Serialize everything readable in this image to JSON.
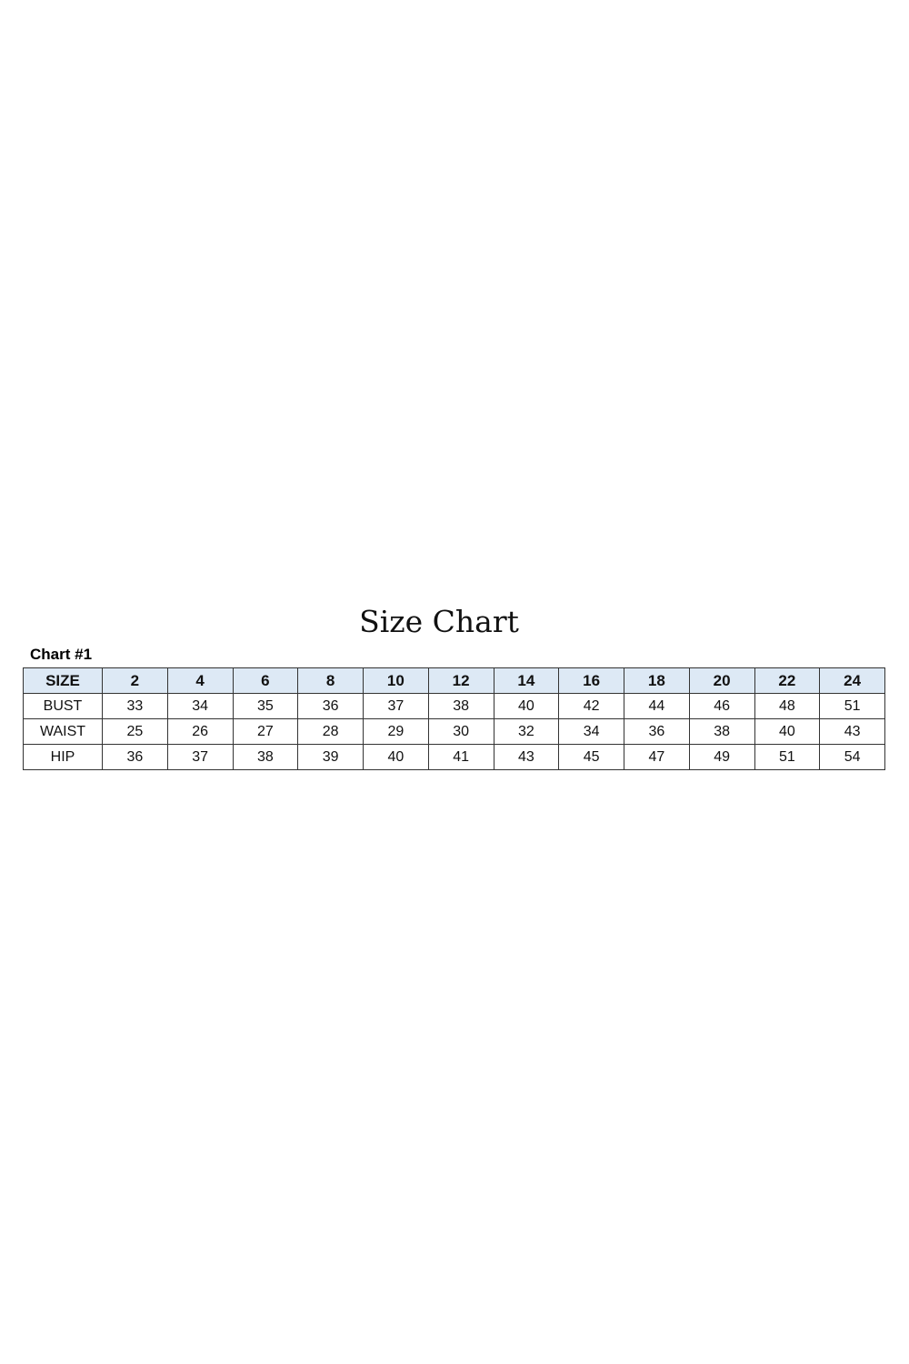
{
  "title": "Size Chart",
  "subtitle": "Chart #1",
  "colors": {
    "header_bg": "#dde9f5",
    "border": "#333333"
  },
  "table": {
    "header": [
      "SIZE",
      "2",
      "4",
      "6",
      "8",
      "10",
      "12",
      "14",
      "16",
      "18",
      "20",
      "22",
      "24"
    ],
    "rows": [
      [
        "BUST",
        "33",
        "34",
        "35",
        "36",
        "37",
        "38",
        "40",
        "42",
        "44",
        "46",
        "48",
        "51"
      ],
      [
        "WAIST",
        "25",
        "26",
        "27",
        "28",
        "29",
        "30",
        "32",
        "34",
        "36",
        "38",
        "40",
        "43"
      ],
      [
        "HIP",
        "36",
        "37",
        "38",
        "39",
        "40",
        "41",
        "43",
        "45",
        "47",
        "49",
        "51",
        "54"
      ]
    ]
  }
}
